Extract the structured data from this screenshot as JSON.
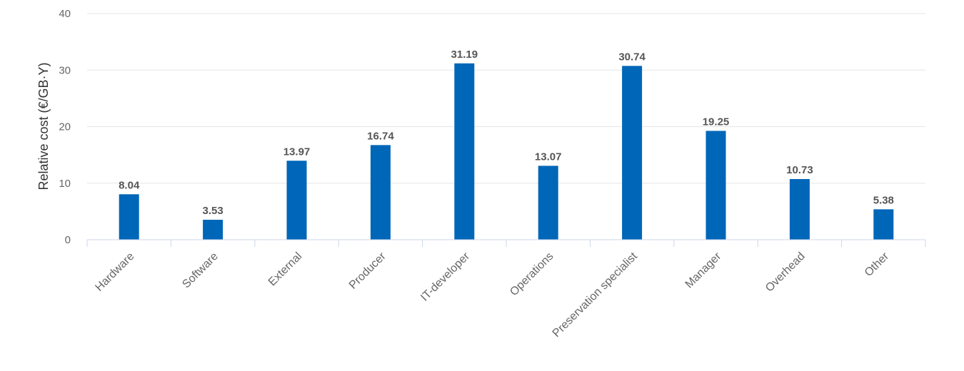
{
  "chart_data": {
    "type": "bar",
    "title": "",
    "xlabel": "",
    "ylabel": "Relative cost (€/GB·Y)",
    "categories": [
      "Hardware",
      "Software",
      "External",
      "Producer",
      "IT-developer",
      "Operations",
      "Preservation specialist",
      "Manager",
      "Overhead",
      "Other"
    ],
    "values": [
      8.04,
      3.53,
      13.97,
      16.74,
      31.19,
      13.07,
      30.74,
      19.25,
      10.73,
      5.38
    ],
    "value_labels": [
      "8.04",
      "3.53",
      "13.97",
      "16.74",
      "31.19",
      "13.07",
      "30.74",
      "19.25",
      "10.73",
      "5.38"
    ],
    "ylim": [
      0,
      40
    ],
    "yticks": [
      0,
      10,
      20,
      30,
      40
    ],
    "ytick_labels": [
      "0",
      "10",
      "20",
      "30",
      "40"
    ],
    "grid": true,
    "legend": "none",
    "bar_color": "#0066b8"
  }
}
